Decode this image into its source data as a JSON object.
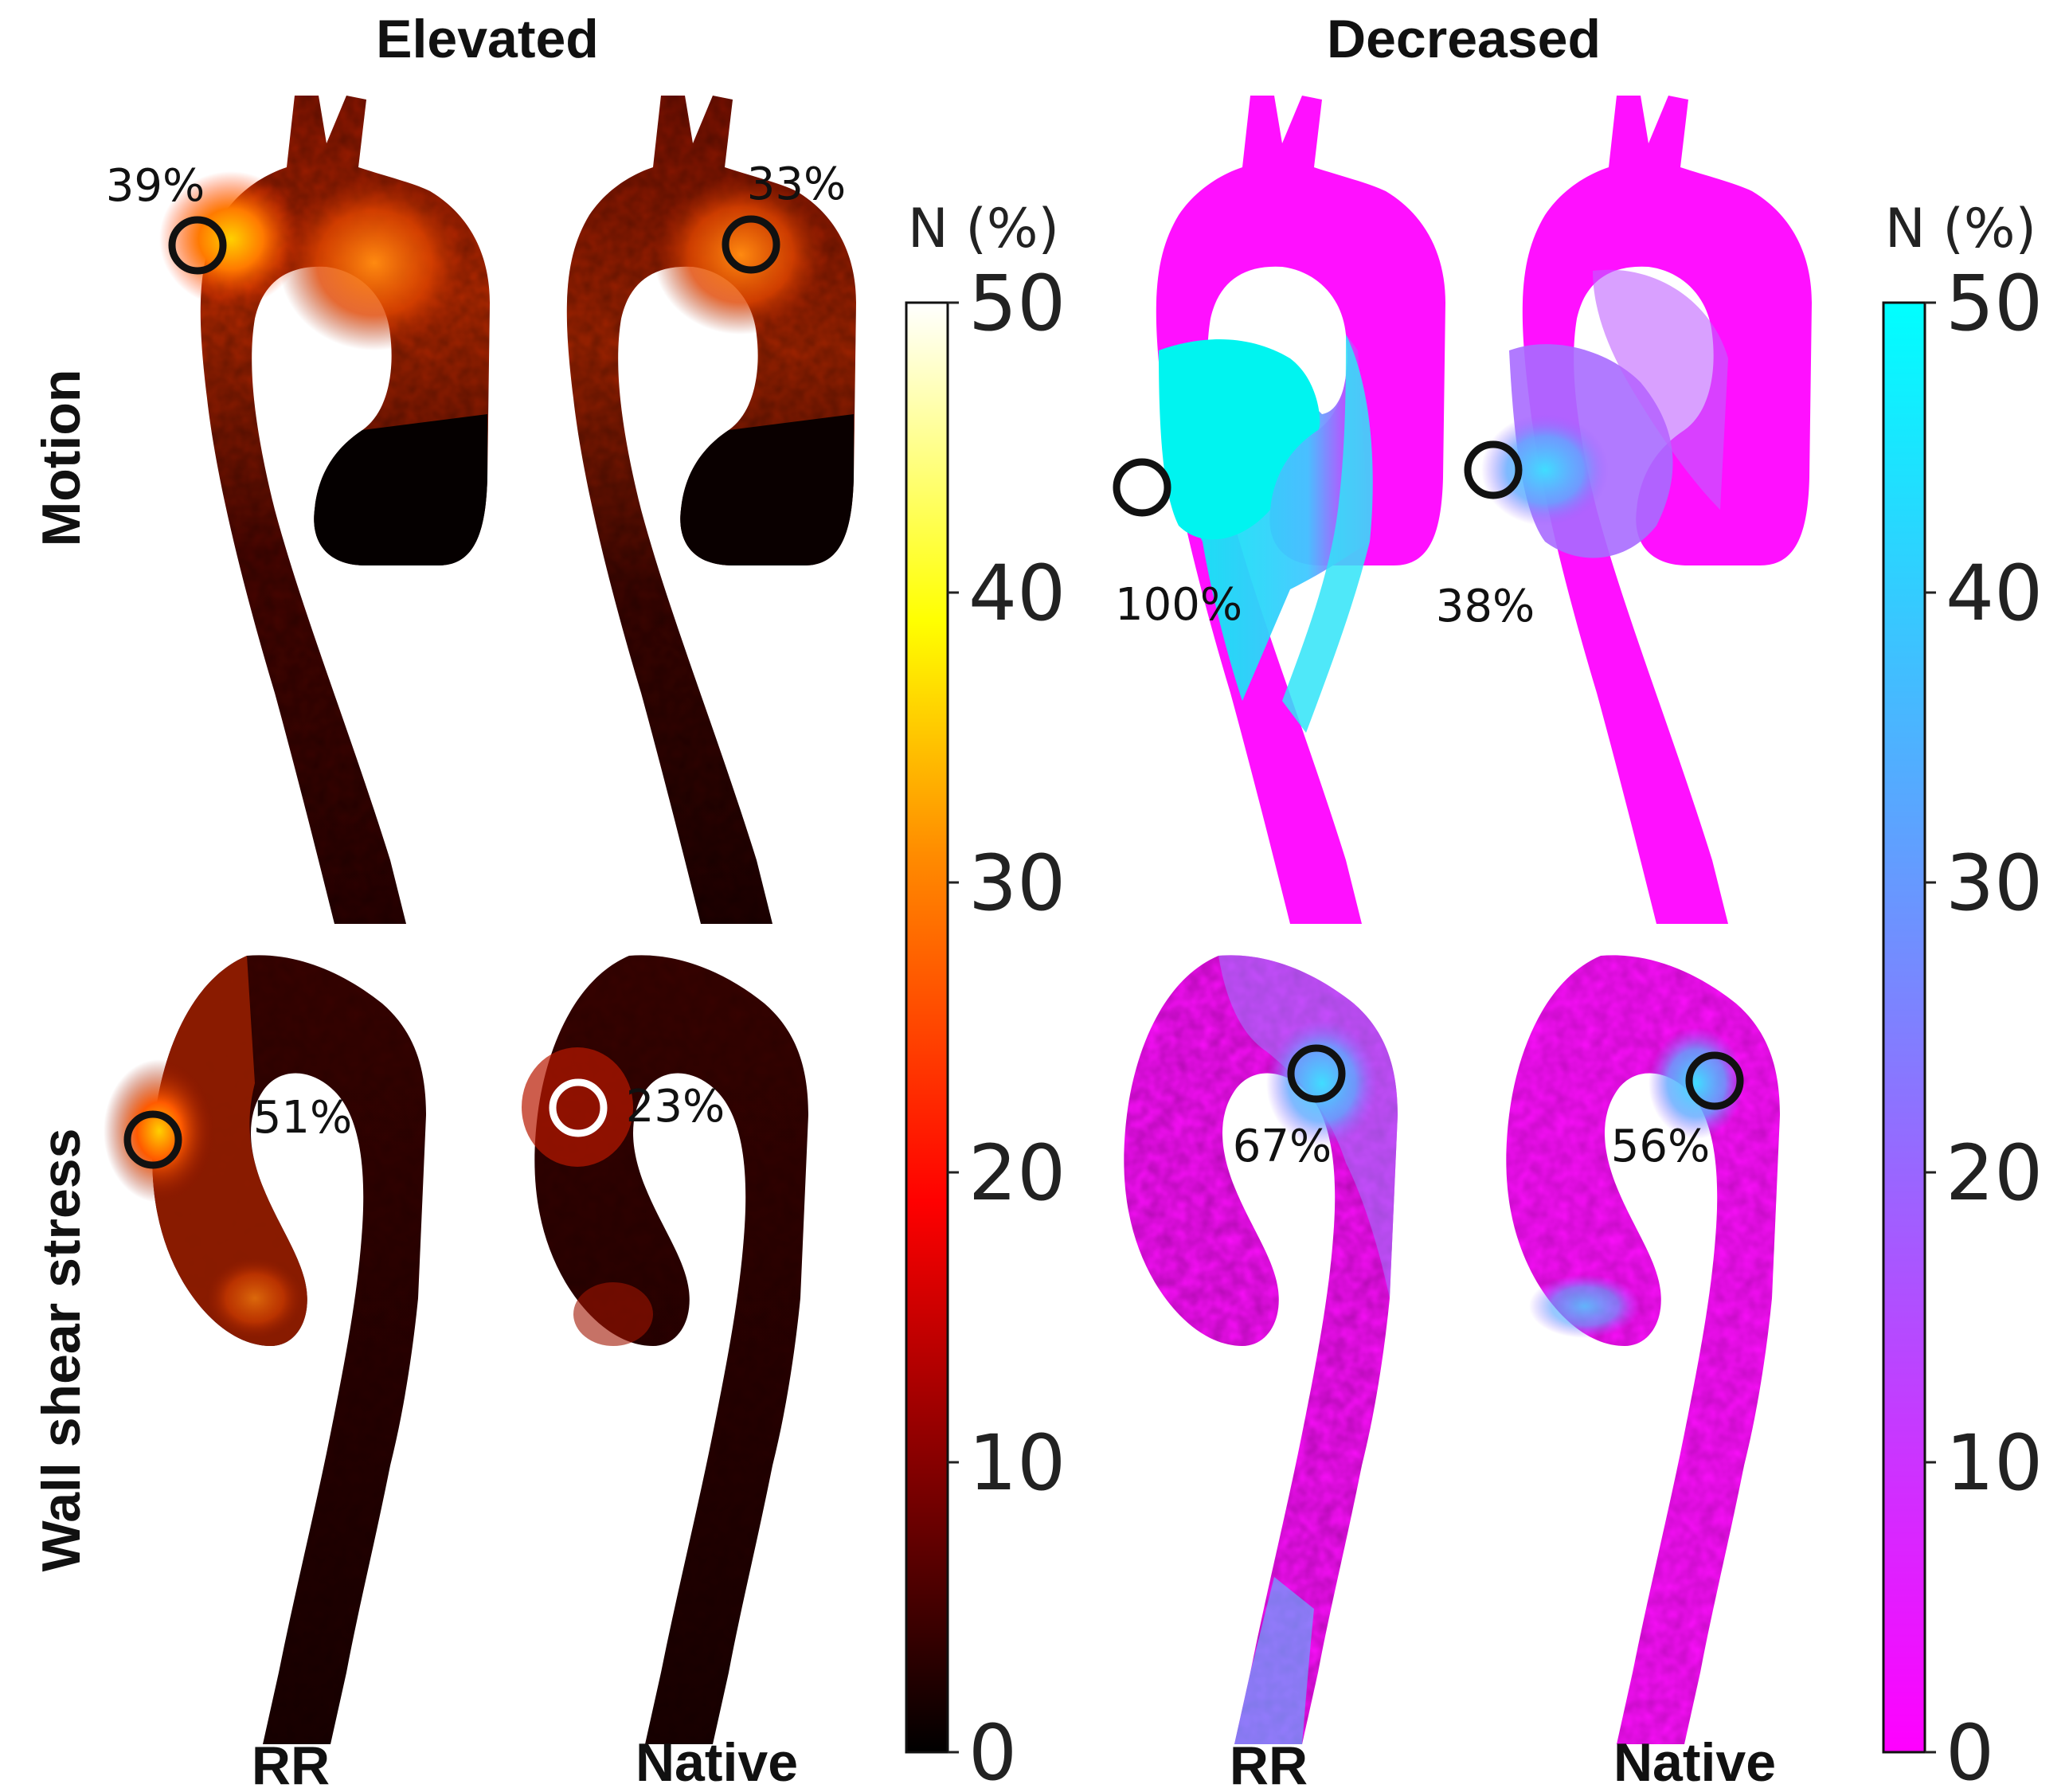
{
  "titles": {
    "elevated": "Elevated",
    "decreased": "Decreased"
  },
  "row_labels": {
    "motion": "Motion",
    "wss": "Wall shear stress"
  },
  "col_labels": {
    "rr": "RR",
    "native": "Native"
  },
  "colorbars": {
    "elevated": {
      "label": "N (%)",
      "ticks": [
        "50",
        "40",
        "30",
        "20",
        "10",
        "0"
      ],
      "range": [
        0,
        50
      ],
      "colormap": "hot",
      "colors": [
        "#000000",
        "#ff0000",
        "#ffff00",
        "#ffffff"
      ]
    },
    "decreased": {
      "label": "N (%)",
      "ticks": [
        "50",
        "40",
        "30",
        "20",
        "10",
        "0"
      ],
      "range": [
        0,
        50
      ],
      "colormap": "cool",
      "colors": [
        "#ff00ff",
        "#00ffff"
      ]
    }
  },
  "panels": {
    "motion_elevated_rr": "39%",
    "motion_elevated_native": "33%",
    "motion_decreased_rr": "100%",
    "motion_decreased_native": "38%",
    "wss_elevated_rr": "51%",
    "wss_elevated_native": "23%",
    "wss_decreased_rr": "67%",
    "wss_decreased_native": "56%"
  },
  "colors": {
    "hot_dark": "#140000",
    "hot_mid": "#7a0c00",
    "magenta": "#ff10ff",
    "cyan": "#00f4f0"
  }
}
